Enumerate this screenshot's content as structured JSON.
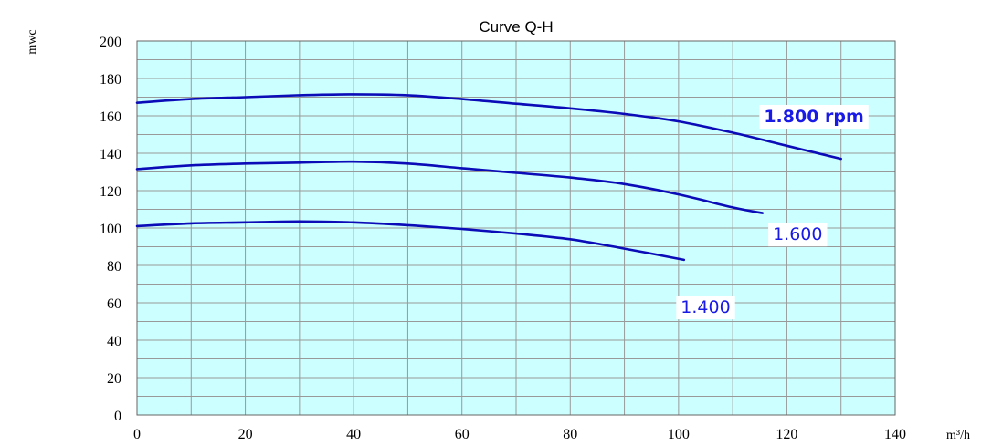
{
  "chart_data": {
    "type": "line",
    "title": "Curve Q-H",
    "xlabel": "m³/h",
    "ylabel": "mwc",
    "xlim": [
      0,
      140
    ],
    "ylim": [
      0,
      200
    ],
    "x_ticks": [
      0,
      20,
      40,
      60,
      80,
      100,
      120,
      140
    ],
    "y_ticks": [
      0,
      20,
      40,
      60,
      80,
      100,
      120,
      140,
      160,
      180,
      200
    ],
    "x_tick_labels": [
      "0",
      "20",
      "40",
      "60",
      "80",
      "100",
      "120",
      "140"
    ],
    "y_tick_labels": [
      "0",
      "20",
      "40",
      "60",
      "80",
      "100",
      "120",
      "140",
      "160",
      "180",
      "200"
    ],
    "grid": true,
    "plot_background": "#ccffff",
    "grid_color": "#999999",
    "line_color": "#0b0bb8",
    "label_color": "#1a1ae6",
    "series": [
      {
        "name": "1.800 rpm",
        "label_bold": true,
        "label_anchor": [
          125,
          160
        ],
        "x": [
          0,
          10,
          20,
          30,
          40,
          50,
          60,
          70,
          80,
          90,
          100,
          110,
          120,
          130
        ],
        "y": [
          167,
          169,
          170,
          171,
          171.5,
          171,
          169,
          166.5,
          164,
          161,
          157,
          151,
          144,
          137
        ]
      },
      {
        "name": "1.600",
        "label_bold": false,
        "label_anchor": [
          122,
          97
        ],
        "x": [
          0,
          10,
          20,
          30,
          40,
          50,
          60,
          70,
          80,
          90,
          100,
          110,
          115.5
        ],
        "y": [
          131.5,
          133.5,
          134.5,
          135,
          135.5,
          134.5,
          132,
          129.5,
          127,
          123.5,
          118,
          111,
          108
        ]
      },
      {
        "name": "1.400",
        "label_bold": false,
        "label_anchor": [
          105,
          58
        ],
        "x": [
          0,
          10,
          20,
          30,
          40,
          50,
          60,
          70,
          80,
          90,
          101
        ],
        "y": [
          101,
          102.5,
          103,
          103.5,
          103,
          101.5,
          99.5,
          97,
          94,
          89,
          83
        ]
      }
    ]
  }
}
